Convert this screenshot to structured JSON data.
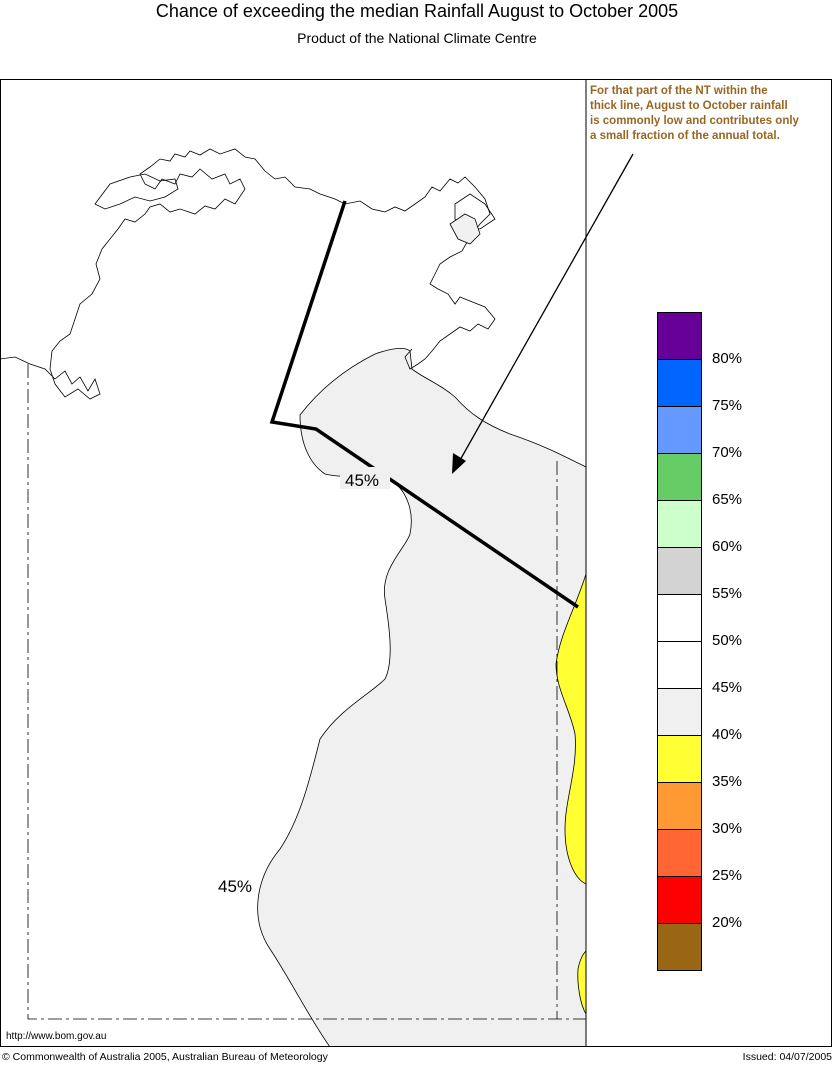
{
  "header": {
    "title": "Chance of exceeding the median Rainfall August to October 2005",
    "subtitle": "Product of the National Climate Centre"
  },
  "note": {
    "lines": [
      "For that part of the NT within the",
      "thick line, August to October rainfall",
      "is commonly low and contributes only",
      "a small fraction of  the annual total."
    ],
    "color": "#996622"
  },
  "contour_labels": [
    "45%",
    "45%"
  ],
  "legend": {
    "swatches": [
      {
        "color": "#660099"
      },
      {
        "color": "#0066ff"
      },
      {
        "color": "#6699ff"
      },
      {
        "color": "#66cc66"
      },
      {
        "color": "#ccffcc"
      },
      {
        "color": "#d3d3d3"
      },
      {
        "color": "#ffffff"
      },
      {
        "color": "#ffffff"
      },
      {
        "color": "#f0f0f0"
      },
      {
        "color": "#ffff33"
      },
      {
        "color": "#ff9933"
      },
      {
        "color": "#ff6633"
      },
      {
        "color": "#ff0000"
      },
      {
        "color": "#996615"
      }
    ],
    "labels": [
      "80%",
      "75%",
      "70%",
      "65%",
      "60%",
      "55%",
      "50%",
      "45%",
      "40%",
      "35%",
      "30%",
      "25%",
      "20%"
    ]
  },
  "footer": {
    "url": "http://www.bom.gov.au",
    "copyright": "© Commonwealth of Australia 2005, Australian Bureau of Meteorology",
    "issued": "Issued: 04/07/2005"
  }
}
